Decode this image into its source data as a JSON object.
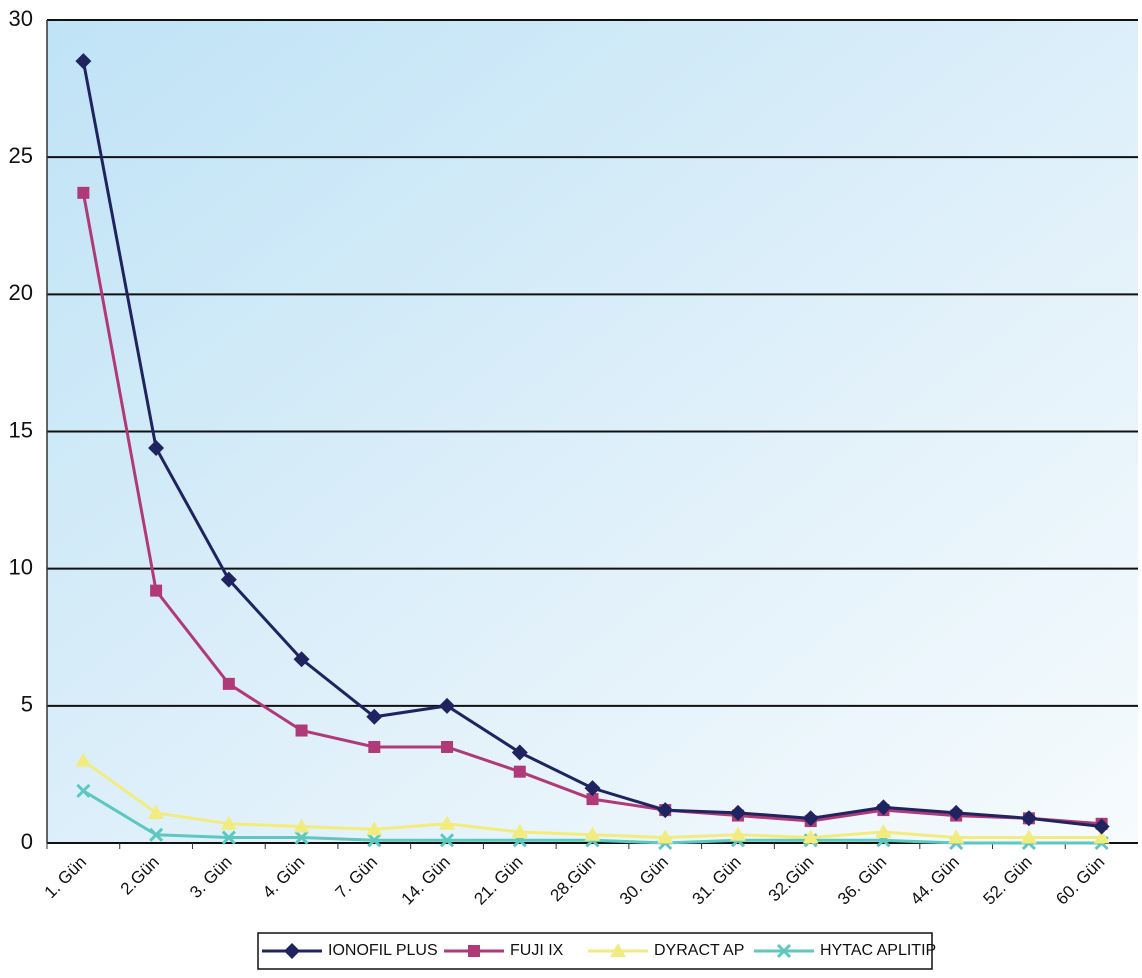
{
  "chart_data": {
    "type": "line",
    "categories": [
      "1. Gün",
      "2.Gün",
      "3. Gün",
      "4. Gün",
      "7. Gün",
      "14. Gün",
      "21. Gün",
      "28.Gün",
      "30. Gün",
      "31. Gün",
      "32.Gün",
      "36. Gün",
      "44. Gün",
      "52. Gün",
      "60. Gün"
    ],
    "series": [
      {
        "name": "IONOFIL PLUS",
        "color": "#1f2460",
        "marker": "diamond",
        "values": [
          28.5,
          14.4,
          9.6,
          6.7,
          4.6,
          5.0,
          3.3,
          2.0,
          1.2,
          1.1,
          0.9,
          1.3,
          1.1,
          0.9,
          0.6
        ]
      },
      {
        "name": "FUJI IX",
        "color": "#b03a78",
        "marker": "square",
        "values": [
          23.7,
          9.2,
          5.8,
          4.1,
          3.5,
          3.5,
          2.6,
          1.6,
          1.2,
          1.0,
          0.8,
          1.2,
          1.0,
          0.9,
          0.7
        ]
      },
      {
        "name": "DYRACT AP",
        "color": "#f2ec7e",
        "marker": "triangle",
        "values": [
          3.0,
          1.1,
          0.7,
          0.6,
          0.5,
          0.7,
          0.4,
          0.3,
          0.2,
          0.3,
          0.2,
          0.4,
          0.2,
          0.2,
          0.2
        ]
      },
      {
        "name": "HYTAC APLITIP",
        "color": "#5cc8c0",
        "marker": "x",
        "values": [
          1.9,
          0.3,
          0.2,
          0.2,
          0.1,
          0.1,
          0.1,
          0.1,
          0.0,
          0.1,
          0.1,
          0.1,
          0.0,
          0.0,
          0.0
        ]
      }
    ],
    "ylim": [
      0,
      30
    ],
    "yticks": [
      0,
      5,
      10,
      15,
      20,
      25,
      30
    ],
    "grid": true,
    "legend": "bottom"
  }
}
